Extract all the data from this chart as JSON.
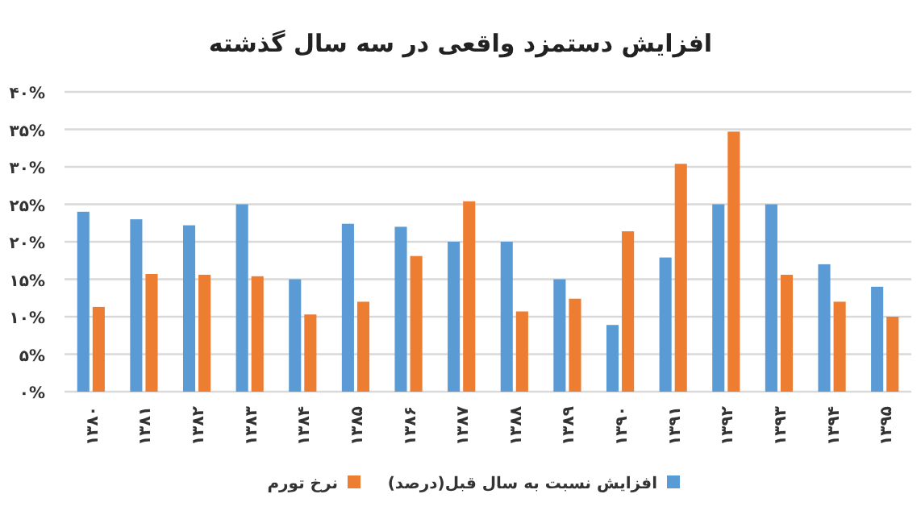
{
  "chart_data": {
    "type": "bar",
    "title": "افزایش دستمزد واقعی در سه سال گذشته",
    "categories": [
      "۱۳۸۰",
      "۱۳۸۱",
      "۱۳۸۲",
      "۱۳۸۳",
      "۱۳۸۴",
      "۱۳۸۵",
      "۱۳۸۶",
      "۱۳۸۷",
      "۱۳۸۸",
      "۱۳۸۹",
      "۱۳۹۰",
      "۱۳۹۱",
      "۱۳۹۲",
      "۱۳۹۳",
      "۱۳۹۴",
      "۱۳۹۵"
    ],
    "series": [
      {
        "name": "افزایش نسبت به سال قبل(درصد)",
        "color": "#5b9bd5",
        "values": [
          24,
          23,
          22.2,
          25,
          15,
          22.4,
          22,
          20,
          20,
          15,
          8.9,
          17.9,
          25,
          25,
          17,
          14
        ]
      },
      {
        "name": "نرخ تورم",
        "color": "#ed7d31",
        "values": [
          11.3,
          15.7,
          15.6,
          15.4,
          10.3,
          12,
          18.1,
          25.4,
          10.7,
          12.4,
          21.4,
          30.4,
          34.7,
          15.6,
          12,
          10
        ]
      }
    ],
    "ylim": [
      0,
      40
    ],
    "yticks": [
      {
        "value": 0,
        "label": "۰%"
      },
      {
        "value": 5,
        "label": "۵%"
      },
      {
        "value": 10,
        "label": "۱۰%"
      },
      {
        "value": 15,
        "label": "۱۵%"
      },
      {
        "value": 20,
        "label": "۲۰%"
      },
      {
        "value": 25,
        "label": "۲۵%"
      },
      {
        "value": 30,
        "label": "۳۰%"
      },
      {
        "value": 35,
        "label": "۳۵%"
      },
      {
        "value": 40,
        "label": "۴۰%"
      }
    ],
    "grid": "y",
    "legend": "bottom"
  }
}
